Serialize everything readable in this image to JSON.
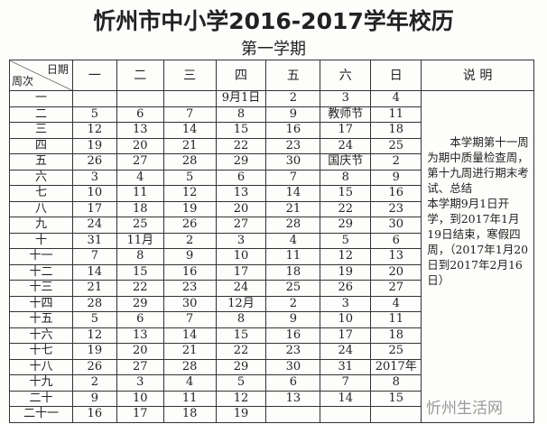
{
  "title": "忻州市中小学2016-2017学年校历",
  "subtitle": "第一学期",
  "header": {
    "corner_top": "日期",
    "corner_bottom": "周次",
    "days": [
      "一",
      "二",
      "三",
      "四",
      "五",
      "六",
      "日"
    ],
    "notes": "说 明"
  },
  "rows": [
    {
      "week": "一",
      "days": [
        "",
        "",
        "",
        "9月1日",
        "2",
        "3",
        "4"
      ]
    },
    {
      "week": "二",
      "days": [
        "5",
        "6",
        "7",
        "8",
        "9",
        "教师节",
        "11"
      ]
    },
    {
      "week": "三",
      "days": [
        "12",
        "13",
        "14",
        "15",
        "16",
        "17",
        "18"
      ]
    },
    {
      "week": "四",
      "days": [
        "19",
        "20",
        "21",
        "22",
        "23",
        "24",
        "25"
      ]
    },
    {
      "week": "五",
      "days": [
        "26",
        "27",
        "28",
        "29",
        "30",
        "国庆节",
        "2"
      ]
    },
    {
      "week": "六",
      "days": [
        "3",
        "4",
        "5",
        "6",
        "7",
        "8",
        "9"
      ]
    },
    {
      "week": "七",
      "days": [
        "10",
        "11",
        "12",
        "13",
        "14",
        "15",
        "16"
      ]
    },
    {
      "week": "八",
      "days": [
        "17",
        "18",
        "19",
        "20",
        "21",
        "22",
        "23"
      ]
    },
    {
      "week": "九",
      "days": [
        "24",
        "25",
        "26",
        "27",
        "28",
        "29",
        "30"
      ]
    },
    {
      "week": "十",
      "days": [
        "31",
        "11月",
        "2",
        "3",
        "4",
        "5",
        "6"
      ]
    },
    {
      "week": "十一",
      "days": [
        "7",
        "8",
        "9",
        "10",
        "11",
        "12",
        "13"
      ]
    },
    {
      "week": "十二",
      "days": [
        "14",
        "15",
        "16",
        "17",
        "18",
        "19",
        "20"
      ]
    },
    {
      "week": "十三",
      "days": [
        "21",
        "22",
        "23",
        "24",
        "25",
        "26",
        "27"
      ]
    },
    {
      "week": "十四",
      "days": [
        "28",
        "29",
        "30",
        "12月",
        "2",
        "3",
        "4"
      ]
    },
    {
      "week": "十五",
      "days": [
        "5",
        "6",
        "7",
        "8",
        "9",
        "10",
        "11"
      ]
    },
    {
      "week": "十六",
      "days": [
        "12",
        "13",
        "14",
        "15",
        "16",
        "17",
        "18"
      ]
    },
    {
      "week": "十七",
      "days": [
        "19",
        "20",
        "21",
        "22",
        "23",
        "24",
        "25"
      ]
    },
    {
      "week": "十八",
      "days": [
        "26",
        "27",
        "28",
        "29",
        "30",
        "31",
        "2017年"
      ]
    },
    {
      "week": "十九",
      "days": [
        "2",
        "3",
        "4",
        "5",
        "6",
        "7",
        "8"
      ]
    },
    {
      "week": "二十",
      "days": [
        "9",
        "10",
        "11",
        "12",
        "13",
        "14",
        "15"
      ]
    },
    {
      "week": "二十一",
      "days": [
        "16",
        "17",
        "18",
        "19",
        "",
        "",
        ""
      ]
    }
  ],
  "notes": {
    "p1": "本学期第十一周为期中质量检查周，第十九周进行期末考试、总结",
    "p2": "本学期9月1日开学，到2017年1月19日结束，寒假四周，（2017年1月20日到2017年2月16日）"
  },
  "watermark": "忻州生活网"
}
